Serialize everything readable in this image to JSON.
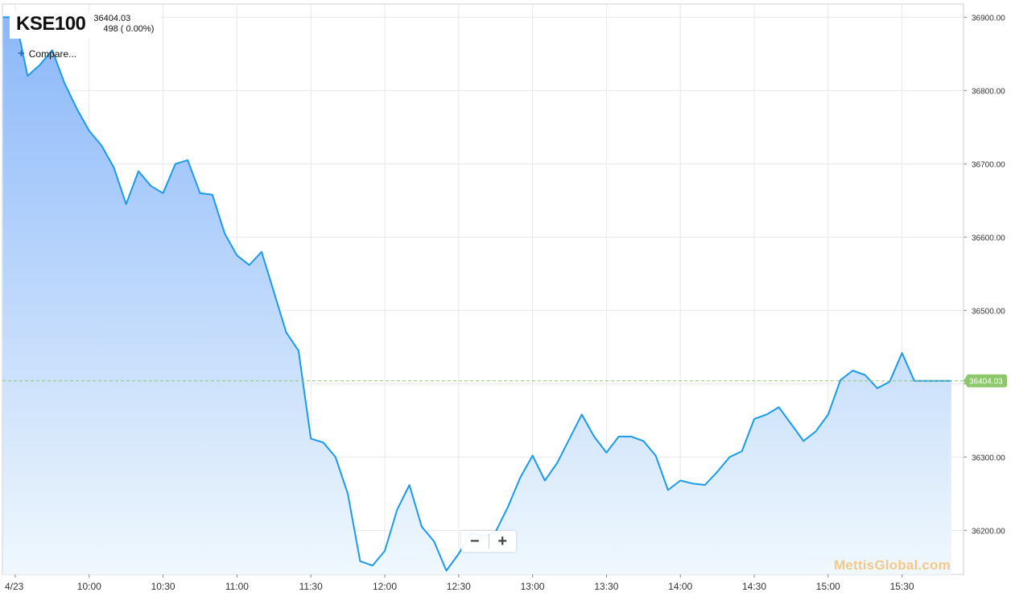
{
  "header": {
    "symbol": "KSE100",
    "last_price": "36404.03",
    "change": "498 ( 0.00%)"
  },
  "compare_label": "Compare...",
  "watermark": "MettisGlobal.com",
  "zoom": {
    "out_icon": "minus-icon",
    "in_icon": "plus-icon"
  },
  "colors": {
    "line": "#1a9be8",
    "fill_top": "#8bb8fa",
    "fill_bottom": "#f0f8fd",
    "last_marker": "#8cc86a",
    "grid": "#e8e8e8"
  },
  "chart_data": {
    "type": "area",
    "title": "",
    "xlabel": "",
    "ylabel": "",
    "ylim": [
      36140,
      36900
    ],
    "y_ticks": [
      36200,
      36300,
      36400,
      36500,
      36600,
      36700,
      36800,
      36900
    ],
    "y_tick_labels": [
      "36200.00",
      "36300.00",
      "36400.00",
      "36500.00",
      "36600.00",
      "36700.00",
      "36800.00",
      "36900.00"
    ],
    "x_start": "9:30",
    "x_end": "15:50",
    "x_ticks": [
      "9:30",
      "10:00",
      "10:30",
      "11:00",
      "11:30",
      "12:00",
      "12:30",
      "13:00",
      "13:30",
      "14:00",
      "14:30",
      "15:00",
      "15:30"
    ],
    "x_tick_labels": [
      "4/23",
      "10:00",
      "10:30",
      "11:00",
      "11:30",
      "12:00",
      "12:30",
      "13:00",
      "13:30",
      "14:00",
      "14:30",
      "15:00",
      "15:30"
    ],
    "last_value": 36404.03,
    "last_label": "36404.03",
    "grid": true,
    "series": [
      {
        "x": [
          "9:25",
          "9:30",
          "9:35",
          "9:40",
          "9:45",
          "9:50",
          "9:55",
          "10:00",
          "10:05",
          "10:10",
          "10:15",
          "10:20",
          "10:25",
          "10:30",
          "10:35",
          "10:40",
          "10:45",
          "10:50",
          "10:55",
          "11:00",
          "11:05",
          "11:10",
          "11:15",
          "11:20",
          "11:25",
          "11:30",
          "11:35",
          "11:40",
          "11:45",
          "11:50",
          "11:55",
          "12:00",
          "12:05",
          "12:10",
          "12:15",
          "12:20",
          "12:25",
          "12:30",
          "12:35",
          "12:40",
          "12:45",
          "12:50",
          "12:55",
          "13:00",
          "13:05",
          "13:10",
          "13:15",
          "13:20",
          "13:25",
          "13:30",
          "13:35",
          "13:40",
          "13:45",
          "13:50",
          "13:55",
          "14:00",
          "14:05",
          "14:10",
          "14:15",
          "14:20",
          "14:25",
          "14:30",
          "14:35",
          "14:40",
          "14:45",
          "14:50",
          "14:55",
          "15:00",
          "15:05",
          "15:10",
          "15:15",
          "15:20",
          "15:25",
          "15:30",
          "15:35",
          "15:40",
          "15:45",
          "15:50"
        ],
        "values": [
          36900,
          36900,
          36820,
          36835,
          36855,
          36810,
          36775,
          36745,
          36725,
          36695,
          36645,
          36690,
          36670,
          36660,
          36700,
          36705,
          36660,
          36658,
          36605,
          36575,
          36562,
          36580,
          36525,
          36470,
          36445,
          36325,
          36320,
          36300,
          36250,
          36158,
          36152,
          36172,
          36228,
          36262,
          36205,
          36185,
          36145,
          36168,
          36196,
          36192,
          36198,
          36232,
          36272,
          36302,
          36268,
          36292,
          36325,
          36358,
          36328,
          36306,
          36328,
          36328,
          36322,
          36302,
          36255,
          36268,
          36264,
          36262,
          36280,
          36300,
          36308,
          36352,
          36358,
          36368,
          36345,
          36322,
          36335,
          36358,
          36405,
          36418,
          36412,
          36394,
          36403,
          36442,
          36404,
          36404,
          36404,
          36404
        ]
      }
    ]
  }
}
